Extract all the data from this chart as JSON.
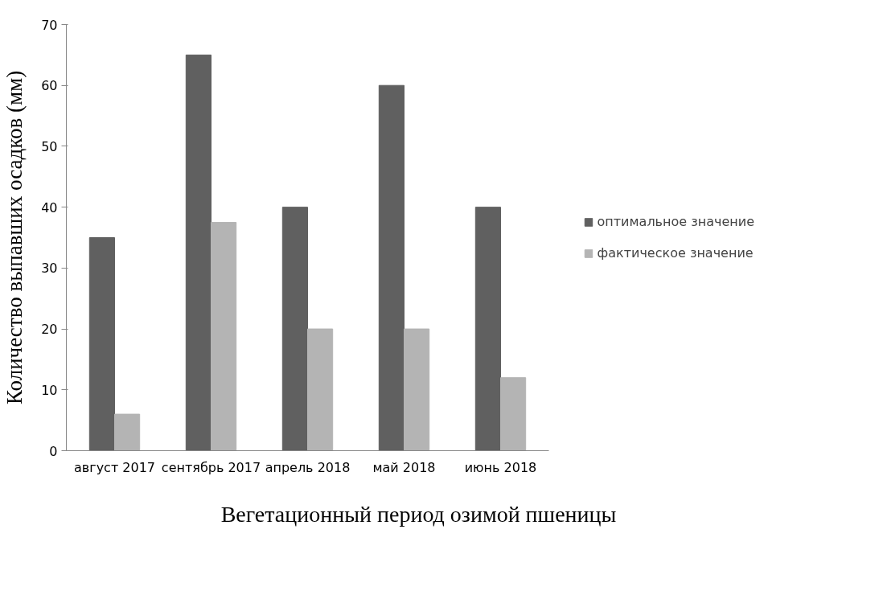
{
  "chart_data": {
    "type": "bar",
    "categories": [
      "август 2017",
      "сентябрь 2017",
      "апрель 2018",
      "май 2018",
      "июнь 2018"
    ],
    "series": [
      {
        "name": "оптимальное значение",
        "color": "#606060",
        "values": [
          35,
          65,
          40,
          60,
          40
        ]
      },
      {
        "name": "фактическое значение",
        "color": "#b4b4b4",
        "values": [
          6,
          37.5,
          20,
          20,
          12
        ]
      }
    ],
    "xlabel": "Вегетационный период озимой пшеницы",
    "ylabel": "Количество выпавших осадков (мм)",
    "ylim": [
      0,
      70
    ],
    "yticks": [
      0,
      10,
      20,
      30,
      40,
      50,
      60,
      70
    ],
    "grid": false,
    "legend": "right"
  }
}
